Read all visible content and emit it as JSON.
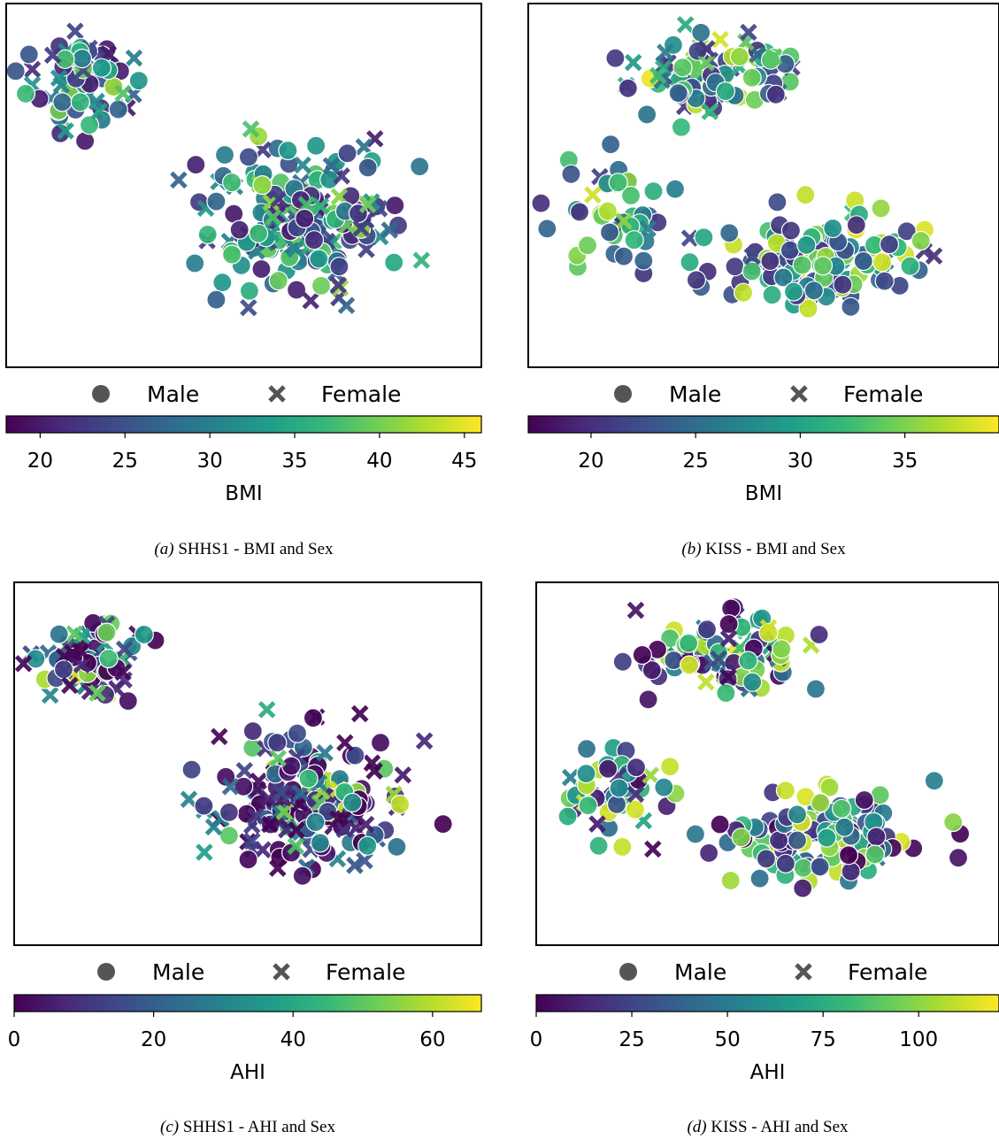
{
  "colors": {
    "marker_edge": "#ffffff",
    "legend_marker": "#555555",
    "frame": "#000000"
  },
  "legend_icons": {
    "male": "filled-circle",
    "female": "x-cross"
  },
  "chart_data": [
    {
      "type": "scatter",
      "caption_id": "(a)",
      "caption_text": " SHHS1 - BMI and Sex",
      "legend": [
        "Male",
        "Female"
      ],
      "colorbar": {
        "label": "BMI",
        "min": 18,
        "max": 46,
        "ticks": [
          20,
          25,
          30,
          35,
          40,
          45
        ],
        "colormap": "viridis"
      },
      "axes_visible": false,
      "points": []
    },
    {
      "type": "scatter",
      "caption_id": "(b)",
      "caption_text": " KISS - BMI and Sex",
      "legend": [
        "Male",
        "Female"
      ],
      "colorbar": {
        "label": "BMI",
        "min": 17,
        "max": 39.5,
        "ticks": [
          20,
          25,
          30,
          35
        ],
        "colormap": "viridis"
      },
      "axes_visible": false,
      "points": []
    },
    {
      "type": "scatter",
      "caption_id": "(c)",
      "caption_text": " SHHS1 - AHI and Sex",
      "legend": [
        "Male",
        "Female"
      ],
      "colorbar": {
        "label": "AHI",
        "min": 0,
        "max": 67,
        "ticks": [
          0,
          20,
          40,
          60
        ],
        "colormap": "viridis"
      },
      "axes_visible": false,
      "points": []
    },
    {
      "type": "scatter",
      "caption_id": "(d)",
      "caption_text": " KISS - AHI and Sex",
      "legend": [
        "Male",
        "Female"
      ],
      "colorbar": {
        "label": "AHI",
        "min": 0,
        "max": 121,
        "ticks": [
          0,
          25,
          50,
          75,
          100
        ],
        "colormap": "viridis"
      },
      "axes_visible": false,
      "points": []
    }
  ]
}
